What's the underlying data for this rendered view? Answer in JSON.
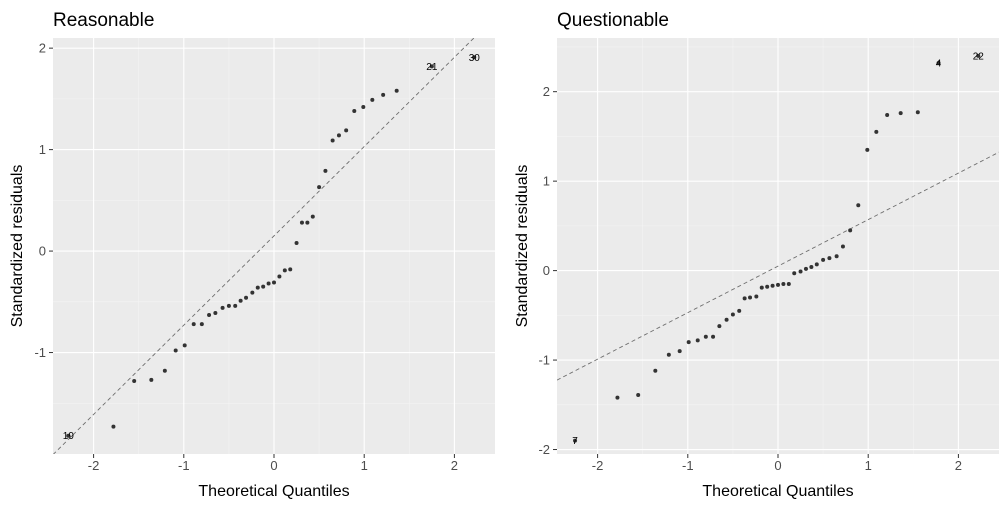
{
  "chart_data": [
    {
      "type": "scatter",
      "title": "Reasonable",
      "xlabel": "Theoretical Quantiles",
      "ylabel": "Standardized residuals",
      "xlim": [
        -2.45,
        2.45
      ],
      "ylim": [
        -2.0,
        2.1
      ],
      "x_ticks": [
        -2,
        -1,
        0,
        1,
        2
      ],
      "y_ticks": [
        -1,
        0,
        1,
        2
      ],
      "grid": true,
      "reference_line": {
        "intercept": 0.15,
        "slope": 0.88
      },
      "points": [
        {
          "x": -1.78,
          "y": -1.73
        },
        {
          "x": -1.55,
          "y": -1.28
        },
        {
          "x": -1.36,
          "y": -1.27
        },
        {
          "x": -1.21,
          "y": -1.18
        },
        {
          "x": -1.09,
          "y": -0.98
        },
        {
          "x": -0.99,
          "y": -0.93
        },
        {
          "x": -0.89,
          "y": -0.72
        },
        {
          "x": -0.8,
          "y": -0.72
        },
        {
          "x": -0.72,
          "y": -0.63
        },
        {
          "x": -0.65,
          "y": -0.61
        },
        {
          "x": -0.57,
          "y": -0.56
        },
        {
          "x": -0.5,
          "y": -0.54
        },
        {
          "x": -0.43,
          "y": -0.54
        },
        {
          "x": -0.37,
          "y": -0.49
        },
        {
          "x": -0.31,
          "y": -0.46
        },
        {
          "x": -0.24,
          "y": -0.41
        },
        {
          "x": -0.18,
          "y": -0.36
        },
        {
          "x": -0.12,
          "y": -0.35
        },
        {
          "x": -0.06,
          "y": -0.32
        },
        {
          "x": 0.0,
          "y": -0.31
        },
        {
          "x": 0.06,
          "y": -0.25
        },
        {
          "x": 0.12,
          "y": -0.19
        },
        {
          "x": 0.18,
          "y": -0.18
        },
        {
          "x": 0.25,
          "y": 0.08
        },
        {
          "x": 0.31,
          "y": 0.28
        },
        {
          "x": 0.37,
          "y": 0.28
        },
        {
          "x": 0.43,
          "y": 0.34
        },
        {
          "x": 0.5,
          "y": 0.63
        },
        {
          "x": 0.57,
          "y": 0.79
        },
        {
          "x": 0.65,
          "y": 1.09
        },
        {
          "x": 0.72,
          "y": 1.14
        },
        {
          "x": 0.8,
          "y": 1.19
        },
        {
          "x": 0.89,
          "y": 1.38
        },
        {
          "x": 0.99,
          "y": 1.42
        },
        {
          "x": 1.09,
          "y": 1.49
        },
        {
          "x": 1.21,
          "y": 1.54
        },
        {
          "x": 1.36,
          "y": 1.58
        }
      ],
      "labeled_points": [
        {
          "x": -2.28,
          "y": -1.82,
          "label": "19"
        },
        {
          "x": 1.75,
          "y": 1.82,
          "label": "21"
        },
        {
          "x": 2.22,
          "y": 1.91,
          "label": "30"
        }
      ]
    },
    {
      "type": "scatter",
      "title": "Questionable",
      "xlabel": "Theoretical Quantiles",
      "ylabel": "Standardized residuals",
      "xlim": [
        -2.45,
        2.45
      ],
      "ylim": [
        -2.05,
        2.6
      ],
      "x_ticks": [
        -2,
        -1,
        0,
        1,
        2
      ],
      "y_ticks": [
        -2,
        -1,
        0,
        1,
        2
      ],
      "grid": true,
      "reference_line": {
        "intercept": 0.05,
        "slope": 0.52
      },
      "points": [
        {
          "x": -1.78,
          "y": -1.42
        },
        {
          "x": -1.55,
          "y": -1.39
        },
        {
          "x": -1.36,
          "y": -1.12
        },
        {
          "x": -1.21,
          "y": -0.94
        },
        {
          "x": -1.09,
          "y": -0.9
        },
        {
          "x": -0.99,
          "y": -0.8
        },
        {
          "x": -0.89,
          "y": -0.78
        },
        {
          "x": -0.8,
          "y": -0.74
        },
        {
          "x": -0.72,
          "y": -0.74
        },
        {
          "x": -0.65,
          "y": -0.62
        },
        {
          "x": -0.57,
          "y": -0.55
        },
        {
          "x": -0.5,
          "y": -0.49
        },
        {
          "x": -0.43,
          "y": -0.45
        },
        {
          "x": -0.37,
          "y": -0.31
        },
        {
          "x": -0.31,
          "y": -0.3
        },
        {
          "x": -0.24,
          "y": -0.29
        },
        {
          "x": -0.18,
          "y": -0.19
        },
        {
          "x": -0.12,
          "y": -0.18
        },
        {
          "x": -0.06,
          "y": -0.17
        },
        {
          "x": 0.0,
          "y": -0.16
        },
        {
          "x": 0.06,
          "y": -0.15
        },
        {
          "x": 0.12,
          "y": -0.15
        },
        {
          "x": 0.18,
          "y": -0.03
        },
        {
          "x": 0.25,
          "y": -0.01
        },
        {
          "x": 0.31,
          "y": 0.02
        },
        {
          "x": 0.37,
          "y": 0.04
        },
        {
          "x": 0.43,
          "y": 0.07
        },
        {
          "x": 0.5,
          "y": 0.12
        },
        {
          "x": 0.57,
          "y": 0.14
        },
        {
          "x": 0.65,
          "y": 0.16
        },
        {
          "x": 0.72,
          "y": 0.27
        },
        {
          "x": 0.8,
          "y": 0.45
        },
        {
          "x": 0.89,
          "y": 0.73
        },
        {
          "x": 0.99,
          "y": 1.35
        },
        {
          "x": 1.09,
          "y": 1.55
        },
        {
          "x": 1.21,
          "y": 1.74
        },
        {
          "x": 1.36,
          "y": 1.76
        },
        {
          "x": 1.55,
          "y": 1.77
        }
      ],
      "labeled_points": [
        {
          "x": -2.25,
          "y": -1.9,
          "label": "7"
        },
        {
          "x": 1.78,
          "y": 2.32,
          "label": "4"
        },
        {
          "x": 2.22,
          "y": 2.4,
          "label": "22"
        }
      ]
    }
  ],
  "colors": {
    "panel_background": "#ebebeb",
    "grid_major": "#ffffff",
    "grid_minor": "#f4f4f4",
    "point": "#333333",
    "reference_line": "#6e6e6e",
    "tick_label": "#4d4d4d",
    "text": "#000000"
  }
}
